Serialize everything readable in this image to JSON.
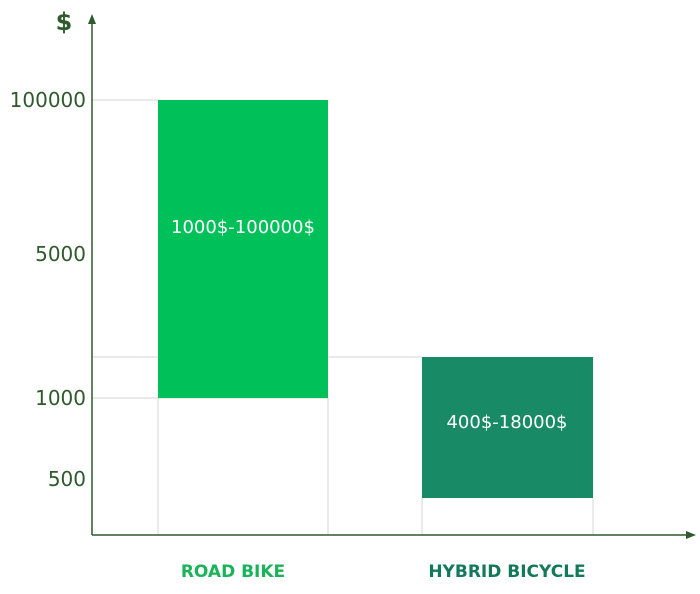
{
  "chart_data": {
    "type": "bar",
    "ylabel": "$",
    "yticks": [
      "100000",
      "5000",
      "1000",
      "500"
    ],
    "categories": [
      "ROAD BIKE",
      "HYBRID BICYCLE"
    ],
    "series": [
      {
        "ranges": [
          {
            "low": 1000,
            "high": 100000,
            "label": "1000$-100000$",
            "color": "#00c05a",
            "label_color": "#1ab35a"
          },
          {
            "low": 400,
            "high": 18000,
            "label": "400$-18000$",
            "color": "#188a66",
            "label_color": "#127a5a"
          }
        ]
      }
    ],
    "axis_color": "#2e5a2e"
  }
}
